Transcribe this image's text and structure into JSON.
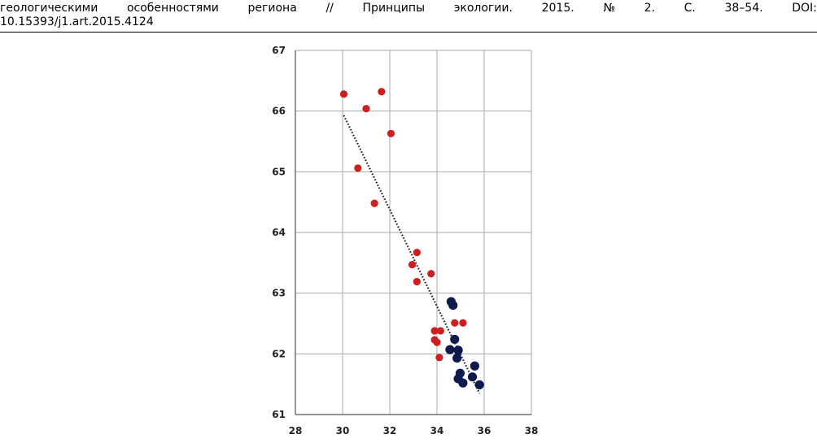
{
  "citation": {
    "words": [
      "геологическими",
      "особенностями",
      "региона",
      "//",
      "Принципы",
      "экологии.",
      "2015.",
      "№",
      "2.",
      "С.",
      "38–54.",
      "DOI:"
    ],
    "line2": "10.15393/j1.art.2015.4124"
  },
  "chart_data": {
    "type": "scatter",
    "title": "",
    "xlabel": "",
    "ylabel": "",
    "xlim": [
      28,
      38
    ],
    "ylim": [
      61,
      67
    ],
    "x_ticks": [
      28,
      30,
      32,
      34,
      36,
      38
    ],
    "y_ticks": [
      61,
      62,
      63,
      64,
      65,
      66,
      67
    ],
    "grid": true,
    "legend": "none",
    "series": [
      {
        "color": "#cc1f1f",
        "points": [
          [
            30.05,
            66.28
          ],
          [
            31.65,
            66.32
          ],
          [
            31.0,
            66.04
          ],
          [
            32.05,
            65.63
          ],
          [
            30.65,
            65.06
          ],
          [
            31.35,
            64.48
          ],
          [
            33.15,
            63.67
          ],
          [
            32.95,
            63.47
          ],
          [
            33.75,
            63.32
          ],
          [
            33.15,
            63.19
          ],
          [
            34.75,
            62.51
          ],
          [
            35.1,
            62.51
          ],
          [
            33.9,
            62.38
          ],
          [
            34.15,
            62.38
          ],
          [
            33.9,
            62.23
          ],
          [
            34.0,
            62.19
          ],
          [
            34.1,
            61.94
          ]
        ]
      },
      {
        "color": "#0d1a4d",
        "points": [
          [
            34.6,
            62.86
          ],
          [
            34.68,
            62.8
          ],
          [
            34.75,
            62.24
          ],
          [
            34.55,
            62.07
          ],
          [
            34.9,
            62.06
          ],
          [
            34.85,
            61.93
          ],
          [
            35.6,
            61.8
          ],
          [
            34.98,
            61.68
          ],
          [
            35.5,
            61.62
          ],
          [
            34.9,
            61.59
          ],
          [
            35.1,
            61.52
          ],
          [
            35.8,
            61.49
          ]
        ]
      }
    ],
    "trendline": {
      "style": "dotted",
      "color": "#222222",
      "from": [
        30.05,
        65.93
      ],
      "to": [
        35.8,
        61.35
      ]
    }
  }
}
